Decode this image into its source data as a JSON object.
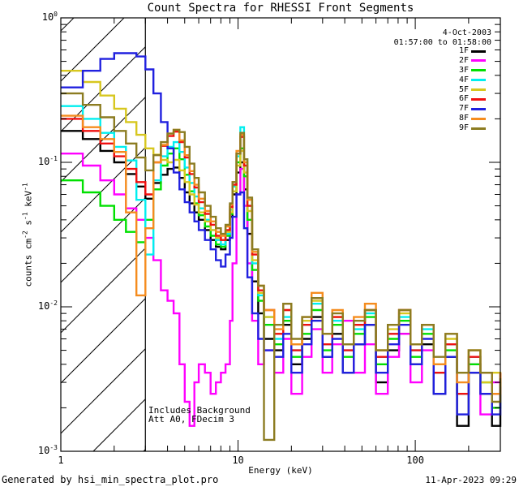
{
  "title": "Count Spectra for RHESSI Front Segments",
  "header": {
    "date": "4-Oct-2003",
    "time_range": "01:57:00 to 01:58:00"
  },
  "annotations": {
    "line1": "Includes Background",
    "line2": "Att A0, FDecim 3"
  },
  "footer": {
    "left": "Generated by hsi_min_spectra_plot.pro",
    "right": "11-Apr-2023 09:29"
  },
  "legend": {
    "items": [
      {
        "label": "1F",
        "color": "#000000"
      },
      {
        "label": "2F",
        "color": "#FF00FF"
      },
      {
        "label": "3F",
        "color": "#00E000"
      },
      {
        "label": "4F",
        "color": "#00EFEF"
      },
      {
        "label": "5F",
        "color": "#D7C71F"
      },
      {
        "label": "6F",
        "color": "#F01010"
      },
      {
        "label": "7F",
        "color": "#2020DF"
      },
      {
        "label": "8F",
        "color": "#F58C1E"
      },
      {
        "label": "9F",
        "color": "#8C7C21"
      }
    ]
  },
  "chart_data": {
    "type": "line",
    "subtype": "histogram-step-spectra",
    "title": "Count Spectra for RHESSI Front Segments",
    "xlabel": "Energy (keV)",
    "ylabel": "counts cm^-2 s^-1 keV^-1",
    "ylabel_parts": [
      {
        "t": "counts cm"
      },
      {
        "s": "-2"
      },
      {
        "t": " s"
      },
      {
        "s": "-1"
      },
      {
        "t": " keV"
      },
      {
        "s": "-1"
      }
    ],
    "x_scale": "log",
    "y_scale": "log",
    "xlim": [
      1,
      302
    ],
    "ylim": [
      0.001,
      1
    ],
    "x_ticks": [
      1,
      10,
      100
    ],
    "x_tick_labels": [
      "1",
      "10",
      "100"
    ],
    "y_ticks": [
      1,
      0.1,
      0.01,
      0.001
    ],
    "y_tick_base": "10",
    "y_tick_exponents": [
      "0",
      "-1",
      "-2",
      "-3"
    ],
    "grid": false,
    "legend_position": "top-right-inside",
    "hatched_low_energy_region_kev": [
      1,
      3
    ],
    "energies_kev": [
      1.0,
      1.33,
      1.67,
      2.0,
      2.33,
      2.67,
      3.0,
      3.33,
      3.67,
      4.0,
      4.33,
      4.67,
      5.0,
      5.33,
      5.67,
      6.0,
      6.5,
      7.0,
      7.5,
      8.0,
      8.5,
      9.0,
      9.3,
      9.8,
      10.3,
      10.8,
      11.3,
      12.0,
      13.0,
      14,
      16,
      18,
      20,
      23,
      26,
      30,
      34,
      39,
      45,
      52,
      60,
      70,
      81,
      94,
      109,
      127,
      148,
      172,
      200,
      233,
      271,
      302
    ],
    "series": [
      {
        "name": "1F",
        "color": "#000000",
        "values": [
          0.165,
          0.145,
          0.12,
          0.1,
          0.083,
          0.068,
          0.056,
          0.072,
          0.082,
          0.09,
          0.092,
          0.078,
          0.062,
          0.052,
          0.045,
          0.04,
          0.034,
          0.029,
          0.026,
          0.025,
          0.029,
          0.042,
          0.06,
          0.085,
          0.1,
          0.065,
          0.032,
          0.015,
          0.009,
          0.006,
          0.005,
          0.0075,
          0.004,
          0.006,
          0.0085,
          0.0045,
          0.0065,
          0.0035,
          0.0055,
          0.0075,
          0.003,
          0.005,
          0.0065,
          0.004,
          0.0055,
          0.0025,
          0.0045,
          0.0015,
          0.0035,
          0.0025,
          0.0015,
          0.0025
        ]
      },
      {
        "name": "2F",
        "color": "#FF00FF",
        "values": [
          0.115,
          0.095,
          0.075,
          0.06,
          0.048,
          0.04,
          0.03,
          0.021,
          0.013,
          0.011,
          0.009,
          0.004,
          0.0022,
          0.0015,
          0.003,
          0.004,
          0.0035,
          0.0025,
          0.003,
          0.0035,
          0.004,
          0.008,
          0.02,
          0.06,
          0.09,
          0.05,
          0.02,
          0.008,
          0.004,
          0.005,
          0.0035,
          0.006,
          0.0025,
          0.0045,
          0.007,
          0.0035,
          0.0055,
          0.008,
          0.0035,
          0.0055,
          0.0025,
          0.0045,
          0.0065,
          0.003,
          0.005,
          0.0035,
          0.0055,
          0.0025,
          0.004,
          0.0018,
          0.003,
          0.002
        ]
      },
      {
        "name": "3F",
        "color": "#00E000",
        "values": [
          0.075,
          0.062,
          0.05,
          0.04,
          0.033,
          0.028,
          0.04,
          0.065,
          0.095,
          0.115,
          0.125,
          0.105,
          0.082,
          0.063,
          0.052,
          0.043,
          0.036,
          0.031,
          0.027,
          0.026,
          0.031,
          0.044,
          0.063,
          0.1,
          0.125,
          0.08,
          0.04,
          0.018,
          0.011,
          0.0075,
          0.0055,
          0.008,
          0.0045,
          0.0065,
          0.0095,
          0.005,
          0.0075,
          0.0045,
          0.0065,
          0.0085,
          0.004,
          0.006,
          0.008,
          0.0045,
          0.0065,
          0.0035,
          0.005,
          0.0025,
          0.004,
          0.003,
          0.002,
          0.003
        ]
      },
      {
        "name": "4F",
        "color": "#00EFEF",
        "values": [
          0.245,
          0.2,
          0.16,
          0.128,
          0.103,
          0.055,
          0.023,
          0.075,
          0.11,
          0.128,
          0.138,
          0.118,
          0.092,
          0.072,
          0.058,
          0.048,
          0.04,
          0.034,
          0.029,
          0.027,
          0.032,
          0.047,
          0.068,
          0.11,
          0.175,
          0.105,
          0.05,
          0.02,
          0.012,
          0.0085,
          0.006,
          0.0085,
          0.005,
          0.0075,
          0.0105,
          0.0055,
          0.008,
          0.005,
          0.007,
          0.009,
          0.0045,
          0.0065,
          0.0085,
          0.005,
          0.007,
          0.0035,
          0.0055,
          0.0025,
          0.0045,
          0.0035,
          0.0025,
          0.0035
        ]
      },
      {
        "name": "5F",
        "color": "#D7C71F",
        "values": [
          0.43,
          0.36,
          0.29,
          0.235,
          0.19,
          0.155,
          0.125,
          0.113,
          0.104,
          0.1,
          0.104,
          0.088,
          0.073,
          0.06,
          0.051,
          0.045,
          0.039,
          0.034,
          0.03,
          0.029,
          0.033,
          0.045,
          0.063,
          0.095,
          0.12,
          0.085,
          0.046,
          0.021,
          0.0125,
          0.0085,
          0.0065,
          0.0095,
          0.0055,
          0.008,
          0.011,
          0.0065,
          0.0085,
          0.0055,
          0.0075,
          0.0095,
          0.005,
          0.007,
          0.009,
          0.0055,
          0.0075,
          0.004,
          0.006,
          0.0035,
          0.005,
          0.003,
          0.0035,
          0.003
        ]
      },
      {
        "name": "6F",
        "color": "#F01010",
        "values": [
          0.2,
          0.165,
          0.135,
          0.11,
          0.09,
          0.073,
          0.06,
          0.1,
          0.13,
          0.152,
          0.163,
          0.138,
          0.108,
          0.083,
          0.067,
          0.053,
          0.044,
          0.037,
          0.031,
          0.029,
          0.034,
          0.049,
          0.07,
          0.115,
          0.15,
          0.095,
          0.05,
          0.023,
          0.013,
          0.0095,
          0.0065,
          0.0095,
          0.005,
          0.0075,
          0.0115,
          0.0055,
          0.0085,
          0.005,
          0.0075,
          0.0095,
          0.0045,
          0.0065,
          0.0095,
          0.005,
          0.0075,
          0.0035,
          0.0055,
          0.0025,
          0.0045,
          0.0035,
          0.0025,
          0.0035
        ]
      },
      {
        "name": "7F",
        "color": "#2020DF",
        "values": [
          0.33,
          0.43,
          0.52,
          0.57,
          0.57,
          0.54,
          0.44,
          0.3,
          0.19,
          0.125,
          0.085,
          0.065,
          0.053,
          0.045,
          0.039,
          0.034,
          0.029,
          0.025,
          0.021,
          0.019,
          0.023,
          0.03,
          0.042,
          0.06,
          0.062,
          0.035,
          0.016,
          0.009,
          0.006,
          0.005,
          0.0045,
          0.0065,
          0.0035,
          0.0055,
          0.008,
          0.0045,
          0.006,
          0.0035,
          0.0055,
          0.0075,
          0.0035,
          0.0055,
          0.0075,
          0.004,
          0.006,
          0.0025,
          0.0045,
          0.0018,
          0.0035,
          0.0025,
          0.0018,
          0.0028
        ]
      },
      {
        "name": "8F",
        "color": "#F58C1E",
        "values": [
          0.21,
          0.175,
          0.145,
          0.118,
          0.045,
          0.012,
          0.035,
          0.1,
          0.132,
          0.158,
          0.168,
          0.142,
          0.112,
          0.087,
          0.07,
          0.056,
          0.046,
          0.039,
          0.033,
          0.031,
          0.036,
          0.051,
          0.073,
          0.12,
          0.155,
          0.1,
          0.055,
          0.024,
          0.014,
          0.0095,
          0.007,
          0.0105,
          0.0055,
          0.0085,
          0.0125,
          0.0065,
          0.0095,
          0.0055,
          0.0085,
          0.0105,
          0.005,
          0.0075,
          0.0095,
          0.0055,
          0.0075,
          0.004,
          0.0065,
          0.003,
          0.005,
          0.0035,
          0.0025,
          0.0035
        ]
      },
      {
        "name": "9F",
        "color": "#8C7C21",
        "values": [
          0.3,
          0.25,
          0.205,
          0.165,
          0.135,
          0.108,
          0.088,
          0.112,
          0.138,
          0.158,
          0.168,
          0.162,
          0.128,
          0.098,
          0.078,
          0.062,
          0.05,
          0.042,
          0.035,
          0.032,
          0.037,
          0.052,
          0.073,
          0.115,
          0.16,
          0.105,
          0.057,
          0.025,
          0.014,
          0.0012,
          0.0075,
          0.0105,
          0.006,
          0.0085,
          0.0115,
          0.0065,
          0.009,
          0.0055,
          0.008,
          0.0095,
          0.005,
          0.0075,
          0.0095,
          0.0055,
          0.0075,
          0.0045,
          0.0065,
          0.0035,
          0.005,
          0.0035,
          0.0022,
          0.0032
        ]
      }
    ]
  }
}
